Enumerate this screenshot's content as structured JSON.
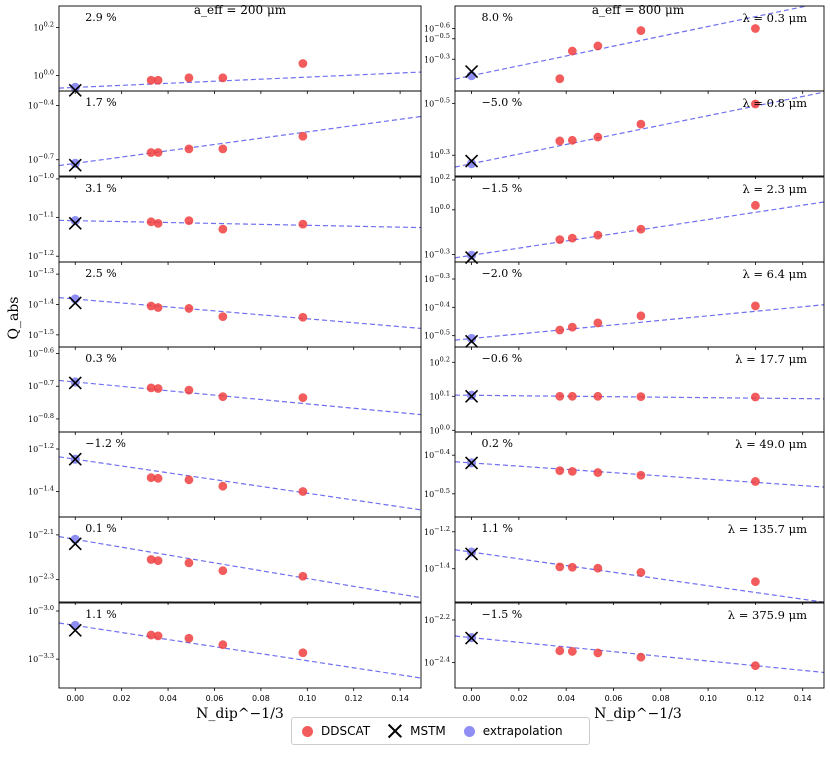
{
  "column_titles": [
    "a_eff = 200 μm",
    "a_eff = 800 μm"
  ],
  "ylabel": "Q_abs",
  "xlabel": "N_dip^−1/3",
  "x_ticks": [
    "0.00",
    "0.02",
    "0.04",
    "0.06",
    "0.08",
    "0.10",
    "0.12",
    "0.14"
  ],
  "legend": {
    "ddscat": "DDSCAT",
    "mstm": "MSTM",
    "extrapolation": "extrapolation"
  },
  "colors": {
    "ddscat": "#f04040",
    "mstm": "#000000",
    "extrapolation": "#8e8ef5",
    "fit_line": "#6f6ff0"
  },
  "chart_data": [
    {
      "type": "scatter",
      "wavelength": "",
      "a_eff": "200 μm",
      "xlim": [
        -0.007,
        0.149
      ],
      "ylim": [
        -0.065,
        0.29
      ],
      "y_ticks": [
        {
          "v": 0.0,
          "label": "10^0.0"
        },
        {
          "v": 0.2,
          "label": "10^0.2"
        }
      ],
      "pct_label": "2.9 %",
      "ddscat_x": [
        0.0327,
        0.0357,
        0.049,
        0.0636,
        0.0981
      ],
      "ddscat_y": [
        -0.02,
        -0.02,
        -0.01,
        -0.01,
        0.05
      ],
      "mstm_y": -0.062,
      "fit": [
        -0.05,
        0.43
      ]
    },
    {
      "type": "scatter",
      "wavelength": "λ = 0.3 μm",
      "a_eff": "800 μm",
      "xlim": [
        -0.007,
        0.149
      ],
      "ylim": [
        0.01,
        -0.82
      ],
      "y_ticks": [
        {
          "v": -0.3,
          "label": "10^−0.3"
        },
        {
          "v": -0.6,
          "label": "10^−0.6"
        },
        {
          "v": -0.5,
          "label": "10^−0.5"
        }
      ],
      "pct_label": "8.0 %",
      "ddscat_x": [
        0.0373,
        0.0426,
        0.0534,
        0.0716,
        0.12
      ],
      "ddscat_y": [
        -0.11,
        -0.38,
        -0.43,
        -0.58,
        -0.6
      ],
      "mstm_y": -0.18,
      "fit": [
        -0.14,
        -4.8
      ]
    },
    {
      "type": "scatter",
      "wavelength": "",
      "a_eff": "200 μm",
      "xlim": [
        -0.007,
        0.149
      ],
      "ylim": [
        -0.79,
        -0.32
      ],
      "y_ticks": [
        {
          "v": -0.4,
          "label": "10^−0.4"
        },
        {
          "v": -0.7,
          "label": "10^−0.7"
        }
      ],
      "pct_label": "1.7 %",
      "ddscat_x": [
        0.0327,
        0.0357,
        0.049,
        0.0636,
        0.0981
      ],
      "ddscat_y": [
        -0.66,
        -0.66,
        -0.64,
        -0.64,
        -0.57
      ],
      "mstm_y": -0.73,
      "fit": [
        -0.72,
        1.74
      ]
    },
    {
      "type": "scatter",
      "wavelength": "λ = 0.8 μm",
      "a_eff": "800 μm",
      "xlim": [
        -0.007,
        0.149
      ],
      "ylim": [
        0.62,
        -0.69
      ],
      "y_ticks": [
        {
          "v": 0.3,
          "label": "10^0.3"
        },
        {
          "v": -0.5,
          "label": "10^−0.5"
        }
      ],
      "pct_label": "−5.0 %",
      "ddscat_x": [
        0.0373,
        0.0426,
        0.0534,
        0.0716,
        0.12
      ],
      "ddscat_y": [
        0.08,
        0.07,
        0.02,
        -0.18,
        -0.49
      ],
      "mstm_y": 0.39,
      "fit": [
        0.43,
        -7.4
      ]
    },
    {
      "type": "scatter",
      "wavelength": "",
      "a_eff": "200 μm",
      "xlim": [
        -0.007,
        0.149
      ],
      "ylim": [
        -1.215,
        -0.995
      ],
      "y_ticks": [
        {
          "v": -1.0,
          "label": "10^−1.0"
        },
        {
          "v": -1.1,
          "label": "10^−1.1"
        },
        {
          "v": -1.2,
          "label": "10^−1.2"
        }
      ],
      "pct_label": "3.1 %",
      "ddscat_x": [
        0.0327,
        0.0357,
        0.049,
        0.0636,
        0.0981
      ],
      "ddscat_y": [
        -1.111,
        -1.115,
        -1.108,
        -1.13,
        -1.117
      ],
      "mstm_y": -1.115,
      "fit": [
        -1.108,
        -0.12
      ]
    },
    {
      "type": "scatter",
      "wavelength": "λ = 2.3 μm",
      "a_eff": "800 μm",
      "xlim": [
        -0.007,
        0.149
      ],
      "ylim": [
        -0.35,
        0.22
      ],
      "y_ticks": [
        {
          "v": 0.2,
          "label": "10^0.2"
        },
        {
          "v": 0.0,
          "label": "10^0.0"
        },
        {
          "v": -0.3,
          "label": "10^−0.3"
        }
      ],
      "pct_label": "−1.5 %",
      "ddscat_x": [
        0.0373,
        0.0426,
        0.0534,
        0.0716,
        0.12
      ],
      "ddscat_y": [
        -0.2,
        -0.19,
        -0.17,
        -0.13,
        0.03
      ],
      "mstm_y": -0.32,
      "fit": [
        -0.305,
        2.4
      ]
    },
    {
      "type": "scatter",
      "wavelength": "",
      "a_eff": "200 μm",
      "xlim": [
        -0.007,
        0.149
      ],
      "ylim": [
        -1.54,
        -1.26
      ],
      "y_ticks": [
        {
          "v": -1.3,
          "label": "10^−1.3"
        },
        {
          "v": -1.4,
          "label": "10^−1.4"
        },
        {
          "v": -1.5,
          "label": "10^−1.5"
        }
      ],
      "pct_label": "2.5 %",
      "ddscat_x": [
        0.0327,
        0.0357,
        0.049,
        0.0636,
        0.0981
      ],
      "ddscat_y": [
        -1.405,
        -1.41,
        -1.413,
        -1.44,
        -1.442
      ],
      "mstm_y": -1.395,
      "fit": [
        -1.382,
        -0.65
      ]
    },
    {
      "type": "scatter",
      "wavelength": "λ = 6.4 μm",
      "a_eff": "800 μm",
      "xlim": [
        -0.007,
        0.149
      ],
      "ylim": [
        -0.54,
        -0.24
      ],
      "y_ticks": [
        {
          "v": -0.3,
          "label": "10^−0.3"
        },
        {
          "v": -0.4,
          "label": "10^−0.4"
        },
        {
          "v": -0.5,
          "label": "10^−0.5"
        }
      ],
      "pct_label": "−2.0 %",
      "ddscat_x": [
        0.0373,
        0.0426,
        0.0534,
        0.0716,
        0.12
      ],
      "ddscat_y": [
        -0.48,
        -0.47,
        -0.455,
        -0.43,
        -0.395
      ],
      "mstm_y": -0.52,
      "fit": [
        -0.51,
        0.8
      ]
    },
    {
      "type": "scatter",
      "wavelength": "",
      "a_eff": "200 μm",
      "xlim": [
        -0.007,
        0.149
      ],
      "ylim": [
        -0.84,
        -0.58
      ],
      "y_ticks": [
        {
          "v": -0.6,
          "label": "10^−0.6"
        },
        {
          "v": -0.7,
          "label": "10^−0.7"
        },
        {
          "v": -0.8,
          "label": "10^−0.8"
        }
      ],
      "pct_label": "0.3 %",
      "ddscat_x": [
        0.0327,
        0.0357,
        0.049,
        0.0636,
        0.0981
      ],
      "ddscat_y": [
        -0.705,
        -0.707,
        -0.712,
        -0.732,
        -0.735
      ],
      "mstm_y": -0.69,
      "fit": [
        -0.687,
        -0.67
      ]
    },
    {
      "type": "scatter",
      "wavelength": "λ = 17.7 μm",
      "a_eff": "800 μm",
      "xlim": [
        -0.007,
        0.149
      ],
      "ylim": [
        -0.005,
        0.245
      ],
      "y_ticks": [
        {
          "v": 0.2,
          "label": "10^0.2"
        },
        {
          "v": 0.1,
          "label": "10^0.1"
        },
        {
          "v": 0.0,
          "label": "10^0.0"
        }
      ],
      "pct_label": "−0.6 %",
      "ddscat_x": [
        0.0373,
        0.0426,
        0.0534,
        0.0716,
        0.12
      ],
      "ddscat_y": [
        0.1,
        0.1,
        0.1,
        0.099,
        0.098
      ],
      "mstm_y": 0.1,
      "fit": [
        0.103,
        -0.07
      ]
    },
    {
      "type": "scatter",
      "wavelength": "",
      "a_eff": "200 μm",
      "xlim": [
        -0.007,
        0.149
      ],
      "ylim": [
        -1.52,
        -1.12
      ],
      "y_ticks": [
        {
          "v": -1.2,
          "label": "10^−1.2"
        },
        {
          "v": -1.4,
          "label": "10^−1.4"
        }
      ],
      "pct_label": "−1.2 %",
      "ddscat_x": [
        0.0327,
        0.0357,
        0.049,
        0.0636,
        0.0981
      ],
      "ddscat_y": [
        -1.335,
        -1.338,
        -1.345,
        -1.375,
        -1.4
      ],
      "mstm_y": -1.248,
      "fit": [
        -1.248,
        -1.6
      ]
    },
    {
      "type": "scatter",
      "wavelength": "λ = 49.0 μm",
      "a_eff": "800 μm",
      "xlim": [
        -0.007,
        0.149
      ],
      "ylim": [
        -0.56,
        -0.34
      ],
      "y_ticks": [
        {
          "v": -0.4,
          "label": "10^−0.4"
        },
        {
          "v": -0.5,
          "label": "10^−0.5"
        }
      ],
      "pct_label": "0.2 %",
      "ddscat_x": [
        0.0373,
        0.0426,
        0.0534,
        0.0716,
        0.12
      ],
      "ddscat_y": [
        -0.44,
        -0.442,
        -0.445,
        -0.452,
        -0.468
      ],
      "mstm_y": -0.42,
      "fit": [
        -0.42,
        -0.42
      ]
    },
    {
      "type": "scatter",
      "wavelength": "",
      "a_eff": "200 μm",
      "xlim": [
        -0.007,
        0.149
      ],
      "ylim": [
        -2.4,
        -2.02
      ],
      "y_ticks": [
        {
          "v": -2.1,
          "label": "10^−2.1"
        },
        {
          "v": -2.3,
          "label": "10^−2.3"
        }
      ],
      "pct_label": "0.1 %",
      "ddscat_x": [
        0.0327,
        0.0357,
        0.049,
        0.0636,
        0.0981
      ],
      "ddscat_y": [
        -2.21,
        -2.215,
        -2.225,
        -2.26,
        -2.285
      ],
      "mstm_y": -2.14,
      "fit": [
        -2.12,
        -1.75
      ]
    },
    {
      "type": "scatter",
      "wavelength": "λ = 135.7 μm",
      "a_eff": "800 μm",
      "xlim": [
        -0.007,
        0.149
      ],
      "ylim": [
        -1.58,
        -1.12
      ],
      "y_ticks": [
        {
          "v": -1.2,
          "label": "10^−1.2"
        },
        {
          "v": -1.4,
          "label": "10^−1.4"
        }
      ],
      "pct_label": "1.1 %",
      "ddscat_x": [
        0.0373,
        0.0426,
        0.0534,
        0.0716,
        0.12
      ],
      "ddscat_y": [
        -1.39,
        -1.392,
        -1.397,
        -1.42,
        -1.47
      ],
      "mstm_y": -1.32,
      "fit": [
        -1.31,
        -1.82
      ]
    },
    {
      "type": "scatter",
      "wavelength": "",
      "a_eff": "200 μm",
      "xlim": [
        -0.007,
        0.149
      ],
      "ylim": [
        -3.48,
        -2.95
      ],
      "y_ticks": [
        {
          "v": -3.0,
          "label": "10^−3.0"
        },
        {
          "v": -3.3,
          "label": "10^−3.3"
        }
      ],
      "pct_label": "1.1 %",
      "ddscat_x": [
        0.0327,
        0.0357,
        0.049,
        0.0636,
        0.0981
      ],
      "ddscat_y": [
        -3.15,
        -3.155,
        -3.17,
        -3.21,
        -3.26
      ],
      "mstm_y": -3.12,
      "fit": [
        -3.09,
        -2.2
      ]
    },
    {
      "type": "scatter",
      "wavelength": "λ = 375.9 μm",
      "a_eff": "800 μm",
      "xlim": [
        -0.007,
        0.149
      ],
      "ylim": [
        -2.52,
        -2.12
      ],
      "y_ticks": [
        {
          "v": -2.2,
          "label": "10^−2.2"
        },
        {
          "v": -2.4,
          "label": "10^−2.4"
        }
      ],
      "pct_label": "−1.5 %",
      "ddscat_x": [
        0.0373,
        0.0426,
        0.0534,
        0.0716,
        0.12
      ],
      "ddscat_y": [
        -2.345,
        -2.348,
        -2.355,
        -2.375,
        -2.415
      ],
      "mstm_y": -2.285,
      "fit": [
        -2.283,
        -1.1
      ]
    }
  ]
}
